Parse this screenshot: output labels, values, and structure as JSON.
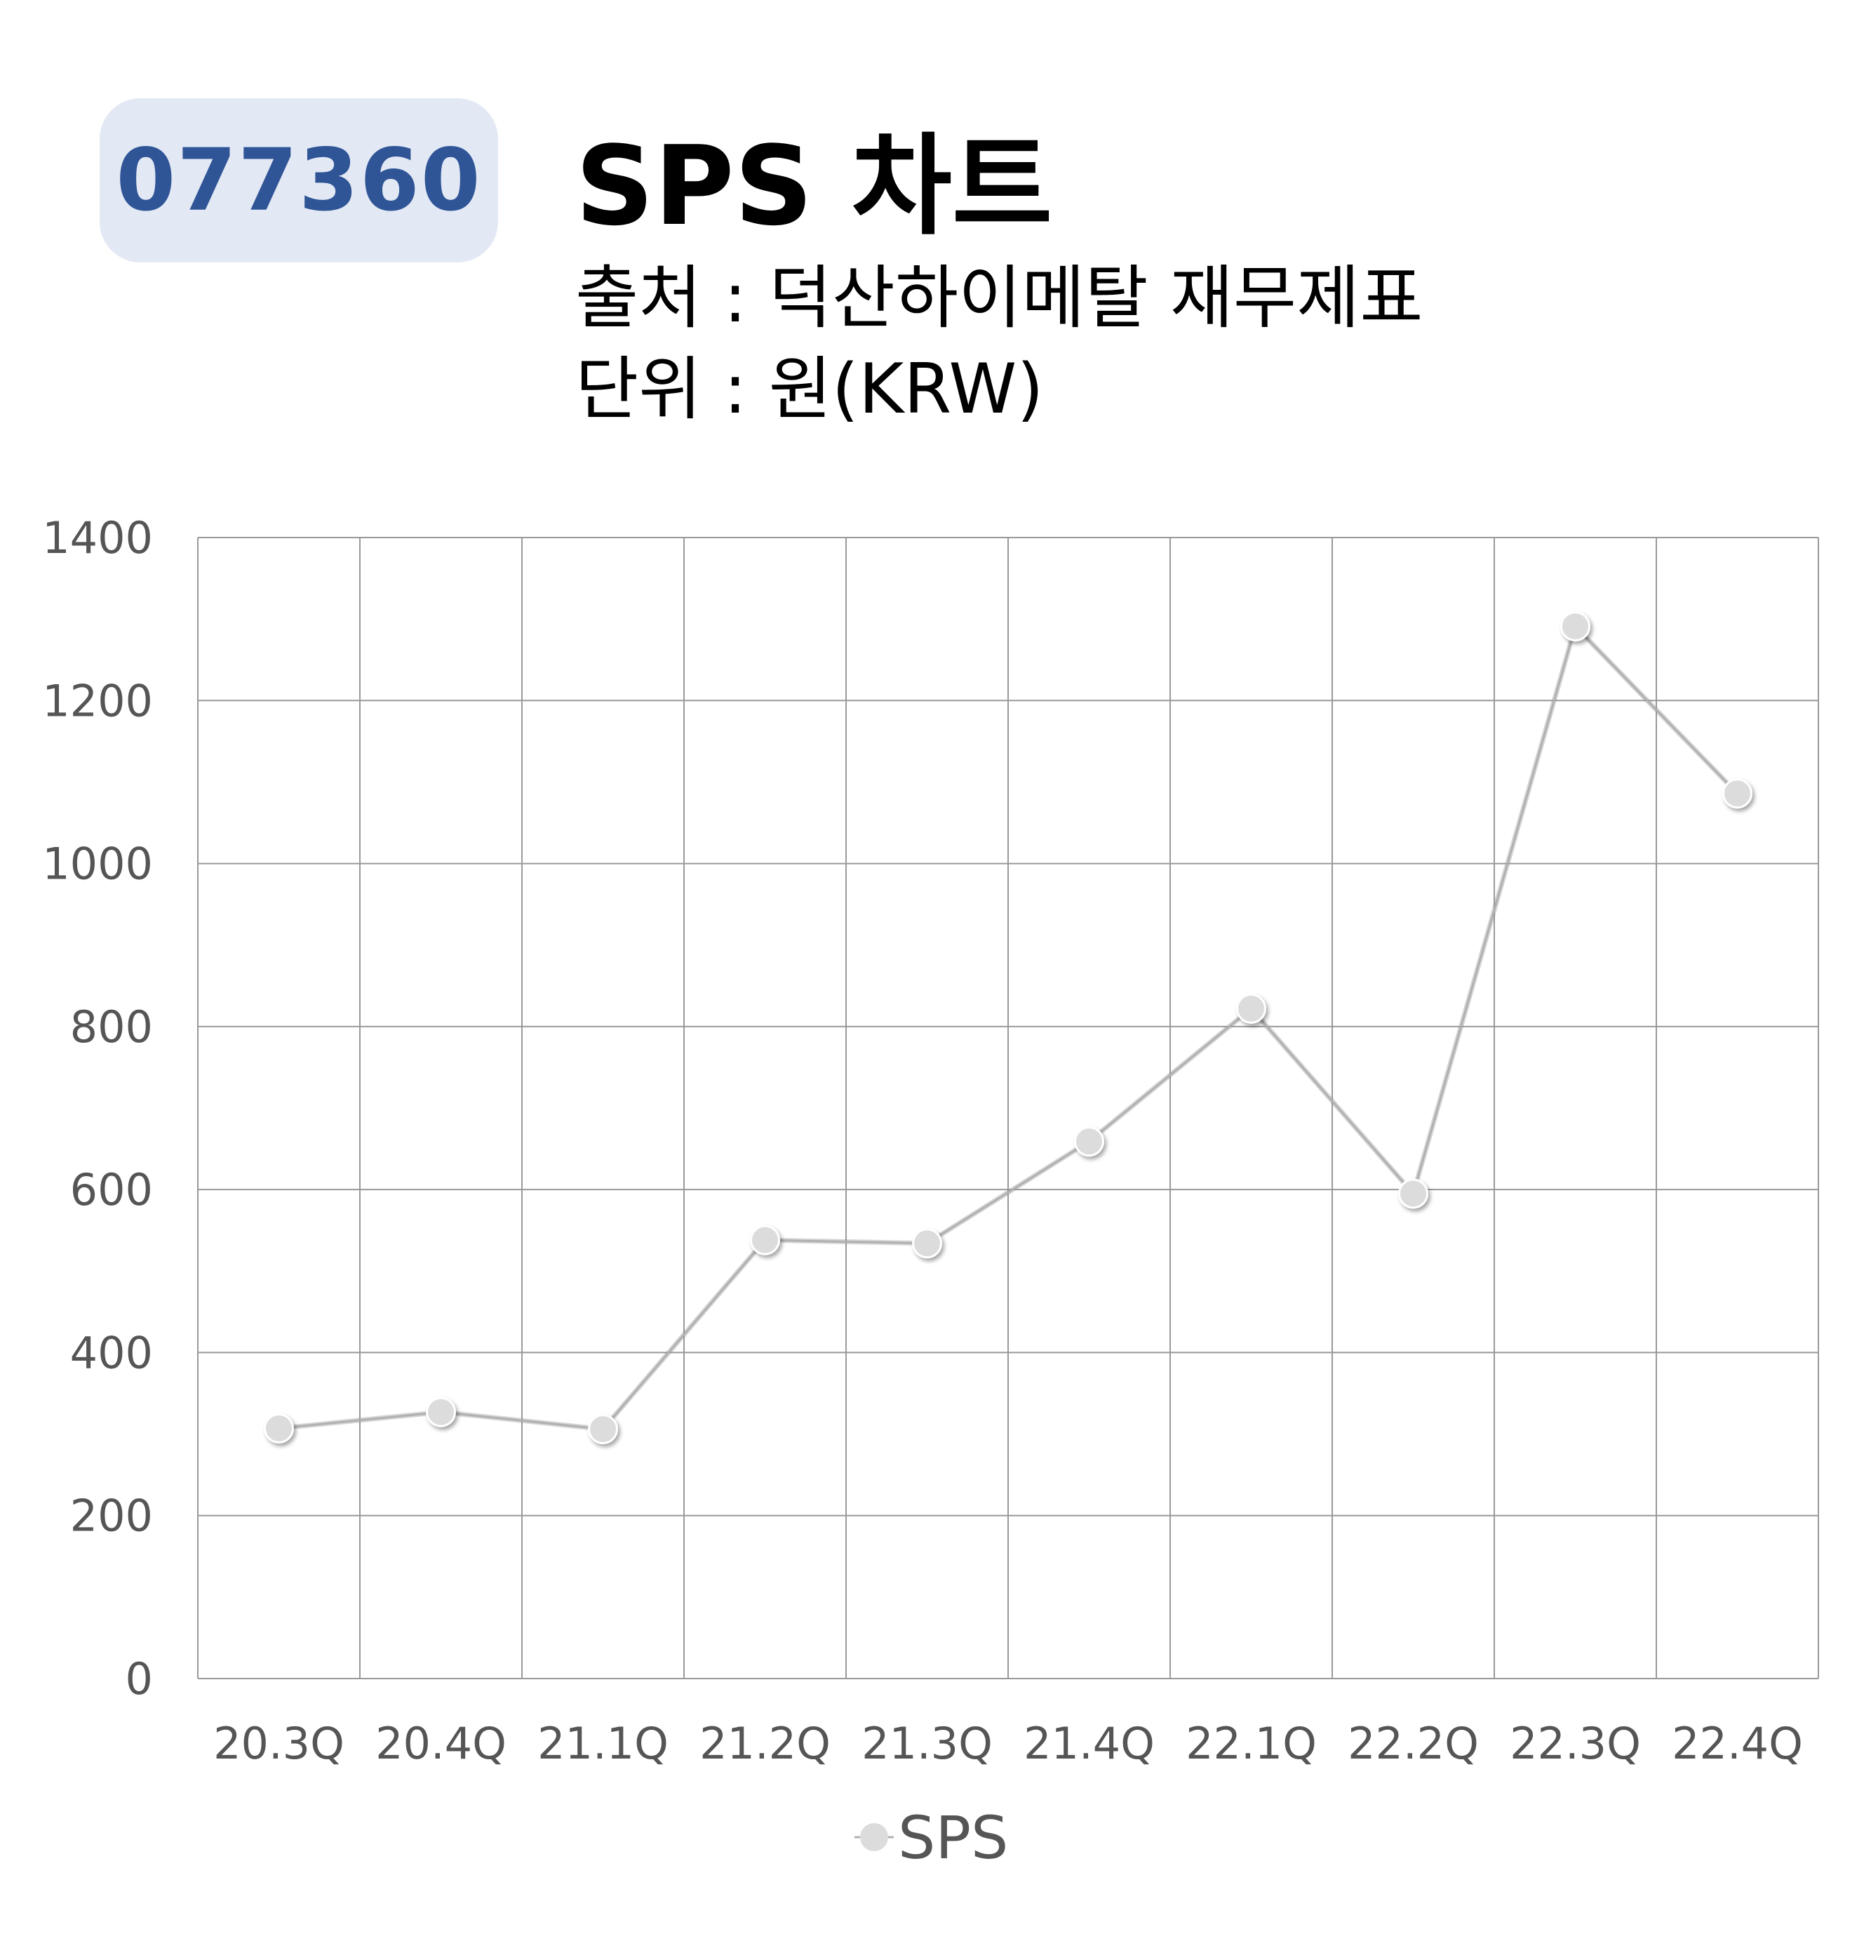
{
  "header": {
    "ticker": "077360",
    "title": "SPS 차트",
    "source_line": "출처 : 덕산하이메탈 재무제표",
    "unit_line": "단위 : 원(KRW)"
  },
  "colors": {
    "badge_bg": "#e3e9f4",
    "badge_text": "#2f5597",
    "series_line": "#b0b0b0",
    "marker_fill": "#dcdcdc",
    "grid": "#999999"
  },
  "chart_data": {
    "type": "line",
    "categories": [
      "20.3Q",
      "20.4Q",
      "21.1Q",
      "21.2Q",
      "21.3Q",
      "21.4Q",
      "22.1Q",
      "22.2Q",
      "22.3Q",
      "22.4Q"
    ],
    "series": [
      {
        "name": "SPS",
        "values": [
          307,
          327,
          306,
          538,
          534,
          659,
          822,
          595,
          1291,
          1086
        ]
      }
    ],
    "yticks": [
      "0",
      "200",
      "400",
      "600",
      "800",
      "1000",
      "1200",
      "1400"
    ],
    "ylim": [
      0,
      1400
    ],
    "grid": true,
    "legend_position": "bottom-center"
  }
}
